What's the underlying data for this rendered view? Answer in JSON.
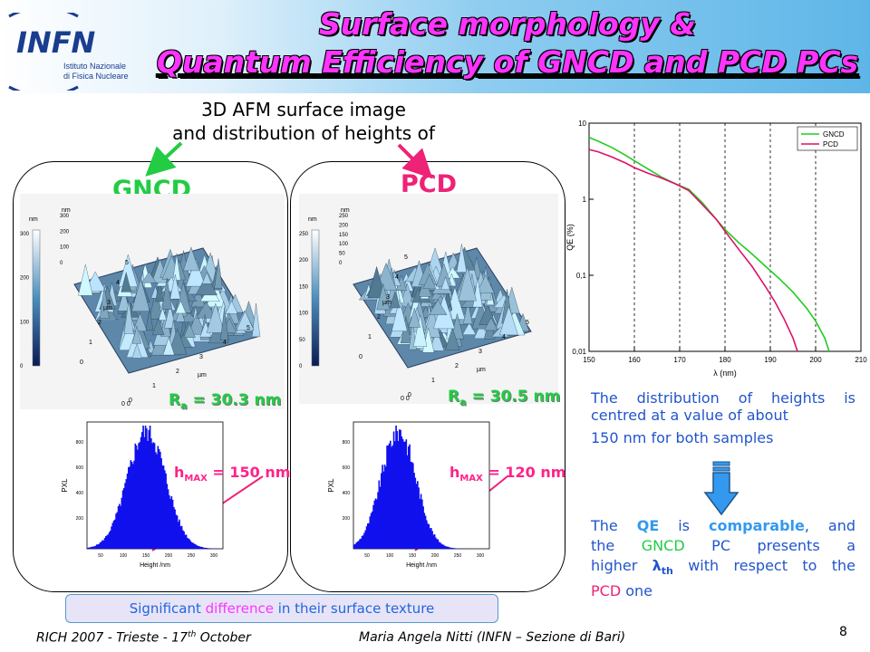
{
  "logo": {
    "acronym": "INFN",
    "line1": "Istituto Nazionale",
    "line2": "di Fisica Nucleare"
  },
  "title": {
    "line1": "Surface morphology &",
    "line2": "Quantum Efficiency of GNCD and PCD PCs"
  },
  "caption": {
    "line1": "3D AFM surface image",
    "line2": "and distribution of heights of"
  },
  "gncd": {
    "label": "GNCD",
    "ra_R": "R",
    "ra_sub": "a",
    "ra_rest": " = 30.3 nm",
    "hmax_h": "h",
    "hmax_sub": "MAX",
    "hmax_rest": " = 150 nm"
  },
  "pcd": {
    "label": "PCD",
    "ra_R": "R",
    "ra_sub": "a",
    "ra_rest": " = 30.5 nm",
    "hmax_h": "h",
    "hmax_sub": "MAX",
    "hmax_rest": " = 120 nm"
  },
  "afm_gncd": {
    "unit_nm": "nm",
    "zticks": [
      "300",
      "200",
      "100",
      "0"
    ],
    "axticks": [
      "300",
      "200",
      "100",
      "0"
    ],
    "um_label": "µm",
    "x_ticks": [
      "0",
      "1",
      "2",
      "3",
      "4",
      "5"
    ],
    "y_ticks": [
      "0",
      "1",
      "2",
      "3",
      "4",
      "5"
    ],
    "corner": "0 0"
  },
  "afm_pcd": {
    "unit_nm": "nm",
    "zticks": [
      "250",
      "200",
      "150",
      "100",
      "50",
      "0"
    ],
    "axticks": [
      "250",
      "200",
      "150",
      "100",
      "50",
      "0"
    ],
    "um_label": "µm",
    "x_ticks": [
      "0",
      "1",
      "2",
      "3",
      "4",
      "5"
    ],
    "y_ticks": [
      "0",
      "1",
      "2",
      "3",
      "4",
      "5"
    ],
    "corner": "0 0"
  },
  "hist_gncd": {
    "ylabel": "PXL",
    "xlabel": "Height /nm",
    "yticks": [
      "800",
      "600",
      "400",
      "200"
    ],
    "xticks": [
      "50",
      "100",
      "150",
      "200",
      "250",
      "300"
    ]
  },
  "hist_pcd": {
    "ylabel": "PXL",
    "xlabel": "Height /nm",
    "yticks": [
      "800",
      "600",
      "400",
      "200"
    ],
    "xticks": [
      "50",
      "100",
      "150",
      "200",
      "250",
      "300"
    ]
  },
  "chart_data": {
    "type": "line",
    "xlabel": "λ (nm)",
    "ylabel": "QE (%)",
    "xlim": [
      150,
      210
    ],
    "ylim": [
      0.01,
      10
    ],
    "yscale": "log",
    "xticks": [
      "150",
      "160",
      "170",
      "180",
      "190",
      "200",
      "210"
    ],
    "yticks": [
      "10",
      "1",
      "0,1",
      "0,01"
    ],
    "vlines": [
      160,
      170,
      180,
      190,
      200
    ],
    "legend_position": "top-right",
    "series": [
      {
        "name": "GNCD",
        "color": "#22cc22",
        "x": [
          150,
          152,
          155,
          158,
          160,
          163,
          166,
          169,
          172,
          175,
          178,
          180,
          183,
          186,
          189,
          192,
          195,
          198,
          200,
          202,
          203
        ],
        "y": [
          6.5,
          5.8,
          4.8,
          3.8,
          3.2,
          2.5,
          1.95,
          1.6,
          1.35,
          0.9,
          0.55,
          0.4,
          0.27,
          0.19,
          0.13,
          0.09,
          0.06,
          0.037,
          0.025,
          0.015,
          0.01
        ]
      },
      {
        "name": "PCD",
        "color": "#dd1166",
        "x": [
          150,
          152,
          155,
          158,
          160,
          163,
          166,
          169,
          172,
          175,
          178,
          180,
          183,
          186,
          189,
          191,
          193,
          195,
          196
        ],
        "y": [
          4.5,
          4.2,
          3.6,
          3.0,
          2.6,
          2.2,
          1.9,
          1.6,
          1.3,
          0.85,
          0.55,
          0.38,
          0.22,
          0.13,
          0.07,
          0.045,
          0.027,
          0.015,
          0.01
        ]
      }
    ]
  },
  "right": {
    "p1_l1": "The distribution of heights is",
    "p1_l2": "centred at a value of about",
    "p1_l3": "150 nm for both samples",
    "p2_a": "The ",
    "p2_qe": "QE",
    "p2_b": " is ",
    "p2_comparable": "comparable",
    "p2_c": ", and",
    "p2_l2a": "the ",
    "p2_gncd": "GNCD",
    "p2_l2b": " PC presents a",
    "p2_l3a": "higher ",
    "p2_lambda": "λ",
    "p2_th": "th",
    "p2_l3b": " with respect to the",
    "p2_pcd": "PCD",
    "p2_l4": " one"
  },
  "bottom": {
    "a": "Significant ",
    "b": "difference",
    "c": " in their surface texture"
  },
  "footer": {
    "left_a": "RICH 2007 - Trieste - 17",
    "left_sup": "th",
    "left_b": " October",
    "center": "Maria Angela Nitti (INFN – Sezione di Bari)",
    "page": "8"
  },
  "colors": {
    "title": "#ff33ff",
    "gncd": "#22cc44",
    "pcd": "#ee2277",
    "blue_text": "#2255cc",
    "arrow_down": "#3399ee"
  }
}
